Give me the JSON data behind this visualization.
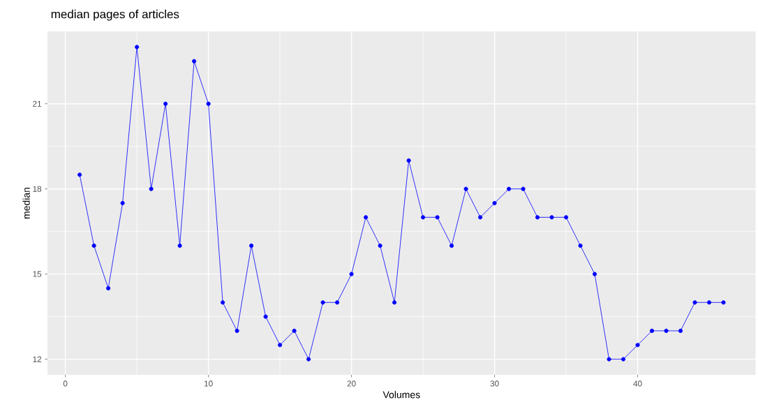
{
  "chart_data": {
    "type": "line",
    "title": "median pages of articles",
    "xlabel": "Volumes",
    "ylabel": "median",
    "x": [
      1,
      2,
      3,
      4,
      5,
      6,
      7,
      8,
      9,
      10,
      11,
      12,
      13,
      14,
      15,
      16,
      17,
      18,
      19,
      20,
      21,
      22,
      23,
      24,
      25,
      26,
      27,
      28,
      29,
      30,
      31,
      32,
      33,
      34,
      35,
      36,
      37,
      38,
      39,
      40,
      41,
      42,
      43,
      44,
      45,
      46
    ],
    "series": [
      {
        "color": "#0000ff",
        "values": [
          18.5,
          16,
          14.5,
          17.5,
          23,
          18,
          21,
          16,
          22.5,
          21,
          14,
          13,
          16,
          13.5,
          12.5,
          13,
          12,
          14,
          14,
          15,
          17,
          16,
          14,
          19,
          17,
          17,
          16,
          18,
          17,
          17.5,
          18,
          18,
          17,
          17,
          17,
          16,
          15,
          12,
          12,
          12.5,
          13,
          13,
          13,
          14,
          14,
          14
        ]
      }
    ],
    "xlim": [
      -1.25,
      48.25
    ],
    "ylim": [
      11.45,
      23.55
    ],
    "xticks": [
      0,
      10,
      20,
      30,
      40
    ],
    "yticks": [
      12,
      15,
      18,
      21
    ],
    "grid": true,
    "marker": "circle",
    "line_style": "solid"
  }
}
